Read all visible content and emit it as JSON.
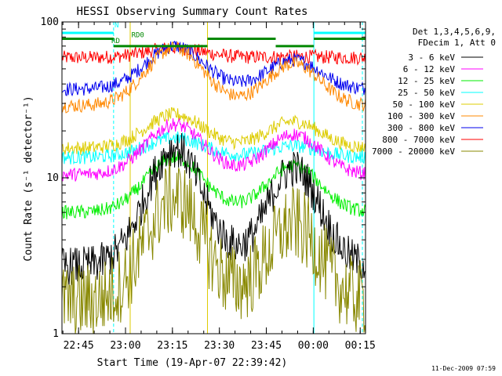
{
  "chart_data": {
    "type": "line",
    "title": "HESSI Observing Summary Count Rates",
    "xlabel": "Start Time (19-Apr-07 22:39:42)",
    "ylabel": "Count Rate (s⁻¹ detector⁻¹)",
    "yscale": "log",
    "ylim": [
      1,
      100
    ],
    "xlim_minutes": [
      0,
      97.0
    ],
    "x_ticks": [
      {
        "label": "22:45",
        "t": 5.3
      },
      {
        "label": "23:00",
        "t": 20.3
      },
      {
        "label": "23:15",
        "t": 35.3
      },
      {
        "label": "23:30",
        "t": 50.3
      },
      {
        "label": "23:45",
        "t": 65.3
      },
      {
        "label": "00:00",
        "t": 80.3
      },
      {
        "label": "00:15",
        "t": 95.3
      }
    ],
    "y_ticks": [
      {
        "label": "1",
        "v": 1
      },
      {
        "label": "10",
        "v": 10
      },
      {
        "label": "100",
        "v": 100
      }
    ],
    "legend": {
      "title_lines": [
        "Det 1,3,4,5,6,9,",
        "FDecim 1, Att 0"
      ],
      "placement": "right"
    },
    "timestamp": "11-Dec-2009 07:59",
    "series": [
      {
        "name": "3 - 6 keV",
        "color": "#000000",
        "base": 2.7,
        "peak1": 15.5,
        "peak2": 11.5
      },
      {
        "name": "6 - 12 keV",
        "color": "#ff00ff",
        "base": 10.5,
        "peak1": 22.0,
        "peak2": 19.0
      },
      {
        "name": "12 - 25 keV",
        "color": "#00ee00",
        "base": 6.0,
        "peak1": 13.5,
        "peak2": 12.0
      },
      {
        "name": "25 - 50 keV",
        "color": "#00ffff",
        "base": 13.5,
        "peak1": 18.0,
        "peak2": 16.0
      },
      {
        "name": "50 - 100 keV",
        "color": "#ddcc00",
        "base": 15.5,
        "peak1": 25.5,
        "peak2": 23.0
      },
      {
        "name": "100 - 300 keV",
        "color": "#ff8800",
        "base": 29.0,
        "peak1": 68.0,
        "peak2": 54.0
      },
      {
        "name": "300 - 800 keV",
        "color": "#0000ee",
        "base": 37.0,
        "peak1": 70.0,
        "peak2": 57.0
      },
      {
        "name": "800 - 7000 keV",
        "color": "#ff0000",
        "base": 59.0,
        "peak1": 68.0,
        "peak2": 60.0
      },
      {
        "name": "7000 - 20000 keV",
        "color": "#888800",
        "base": 1.6,
        "peak1": 7.5,
        "peak2": 5.0
      }
    ],
    "annotations": [
      {
        "label": "N",
        "color": "#00ffff"
      },
      {
        "label": "RD",
        "color": "#008800"
      },
      {
        "label": "RD0",
        "color": "#008800"
      }
    ],
    "status_bars": [
      {
        "color": "#00ffff",
        "value": 85,
        "segments": [
          [
            0,
            16.5
          ],
          [
            80.5,
            97.0
          ]
        ]
      },
      {
        "color": "#008800",
        "value": 78,
        "segments": [
          [
            0,
            16.5
          ],
          [
            46.5,
            68.3
          ],
          [
            80.5,
            97.0
          ]
        ]
      },
      {
        "color": "#008800",
        "value": 70,
        "segments": [
          [
            16.5,
            46.5
          ],
          [
            68.3,
            80.5
          ]
        ]
      }
    ],
    "vertical_lines": [
      {
        "t": 16.5,
        "color": "#00ffff",
        "style": "dashed"
      },
      {
        "t": 80.5,
        "color": "#00ffff",
        "style": "solid"
      },
      {
        "t": 96.0,
        "color": "#00ffff",
        "style": "dashed"
      },
      {
        "t": 46.5,
        "color": "#ddcc00",
        "style": "solid"
      },
      {
        "t": 21.8,
        "color": "#ddcc00",
        "style": "solid"
      }
    ]
  }
}
